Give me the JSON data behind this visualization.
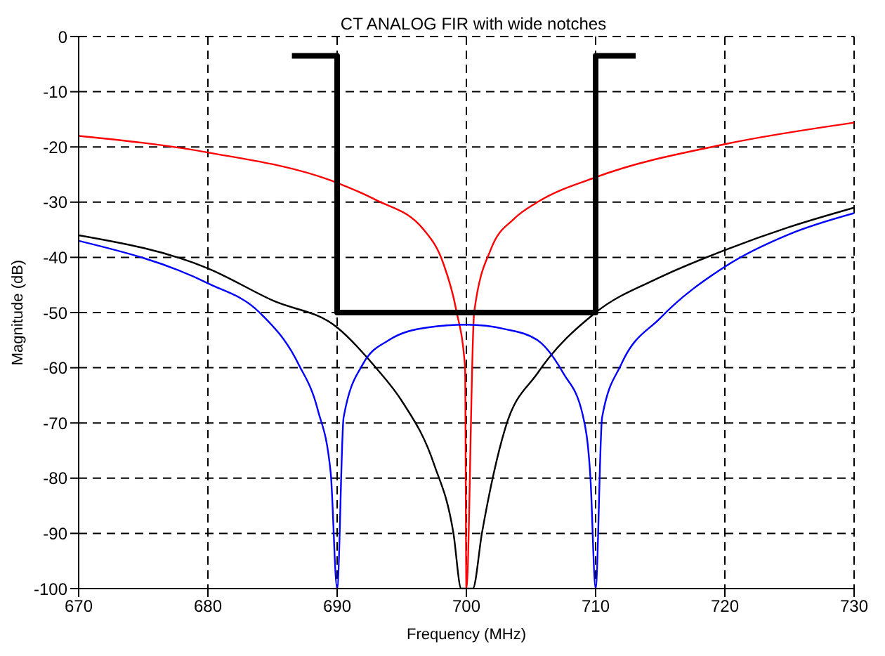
{
  "chart_data": {
    "type": "line",
    "title": "CT ANALOG FIR with wide notches",
    "xlabel": "Frequency (MHz)",
    "ylabel": "Magnitude (dB)",
    "xlim": [
      670,
      730
    ],
    "xticks": [
      670,
      680,
      690,
      700,
      710,
      720,
      730
    ],
    "ylim": [
      -100,
      0
    ],
    "yticks": [
      -100,
      -90,
      -80,
      -70,
      -60,
      -50,
      -40,
      -30,
      -20,
      -10,
      0
    ],
    "grid": true,
    "marker": "none",
    "line_style": "solid",
    "series": [
      {
        "color": "#ff0000",
        "x": [
          670,
          680,
          690,
          693,
          696.7,
          698.2,
          699.2,
          699.9,
          700,
          700.6,
          701.9,
          703.7,
          705.5,
          710,
          720,
          730
        ],
        "values": [
          -18,
          -21,
          -26.5,
          -29.6,
          -35,
          -41,
          -49.4,
          -60,
          -100,
          -50,
          -38.5,
          -33,
          -30,
          -25.5,
          -19.5,
          -15.6
        ]
      },
      {
        "color": "#000000",
        "x": [
          670,
          680,
          685,
          690,
          693,
          695,
          697.5,
          699,
          699.6,
          700.5,
          701.2,
          703,
          705.5,
          710,
          715,
          720,
          725,
          730
        ],
        "values": [
          -36,
          -42,
          -47.8,
          -52.7,
          -60,
          -66,
          -77.5,
          -90,
          -100,
          -100,
          -90,
          -71,
          -61,
          -50,
          -43.6,
          -38.7,
          -34.5,
          -31
        ]
      },
      {
        "color": "#0000ff",
        "x": [
          670,
          680,
          684,
          687,
          688.5,
          689.5,
          690,
          690.5,
          692,
          694,
          697,
          700,
          703,
          705.5,
          707.5,
          709,
          709.6,
          710,
          710.5,
          712,
          715,
          720,
          725,
          730
        ],
        "values": [
          -37,
          -44.7,
          -50,
          -59.3,
          -67.6,
          -79,
          -100,
          -69,
          -59.3,
          -55,
          -52.7,
          -52.2,
          -53,
          -55,
          -61,
          -68.5,
          -80,
          -100,
          -69,
          -59.3,
          -51,
          -41.7,
          -35.8,
          -32
        ]
      },
      {
        "color": "#000000",
        "x": [
          686.5,
          690,
          690,
          710,
          710,
          713.1
        ],
        "values": [
          -3.5,
          -3.5,
          -50,
          -50,
          -3.5,
          -3.5
        ]
      }
    ]
  }
}
